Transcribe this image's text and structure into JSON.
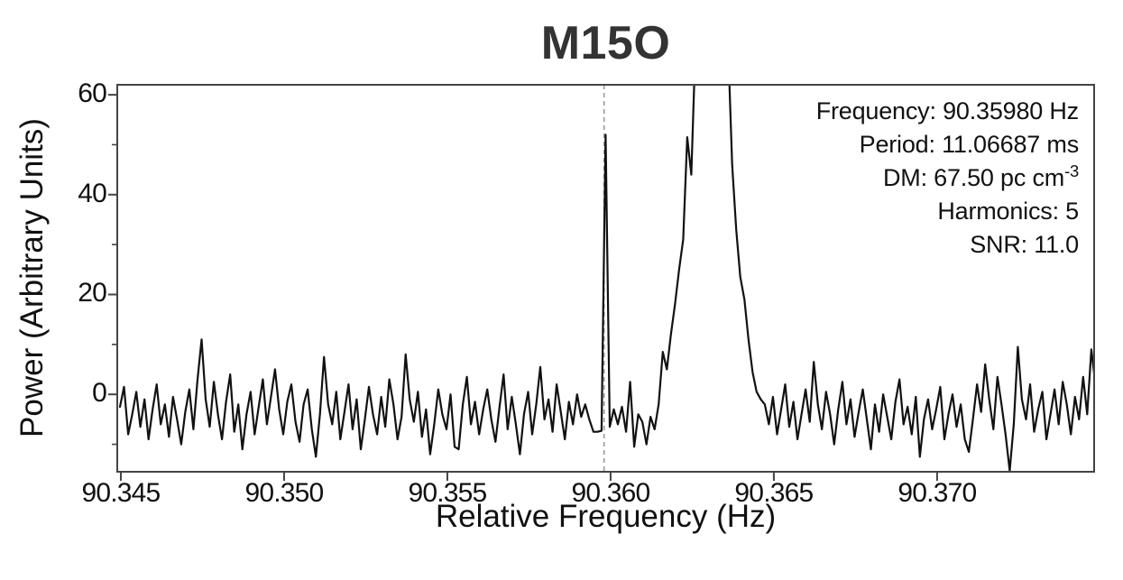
{
  "chart_data": {
    "type": "line",
    "title": "M15O",
    "xlabel": "Relative Frequency (Hz)",
    "ylabel": "Power (Arbitrary Units)",
    "xlim": [
      90.34489,
      90.37481
    ],
    "ylim": [
      -15.5,
      62
    ],
    "grid": false,
    "legend": "none",
    "background": "#ffffff",
    "line_color": "#111111",
    "frame_color": "#444444",
    "marker_line": {
      "x": 90.3598,
      "color": "#999999",
      "style": "dashed"
    },
    "x_ticks": [
      {
        "value": 90.345,
        "label": "90.345"
      },
      {
        "value": 90.35,
        "label": "90.350"
      },
      {
        "value": 90.355,
        "label": "90.355"
      },
      {
        "value": 90.36,
        "label": "90.360"
      },
      {
        "value": 90.365,
        "label": "90.365"
      },
      {
        "value": 90.37,
        "label": "90.370"
      }
    ],
    "y_ticks": [
      {
        "value": 0,
        "label": "0"
      },
      {
        "value": 20,
        "label": "20"
      },
      {
        "value": 40,
        "label": "40"
      },
      {
        "value": 60,
        "label": "60"
      }
    ],
    "y_minor_ticks": [
      -10,
      10,
      30,
      50
    ],
    "annotation": {
      "align": "right",
      "lines": [
        {
          "name": "frequency",
          "text": "Frequency: 90.35980 Hz"
        },
        {
          "name": "period",
          "text": "Period: 11.06687 ms"
        },
        {
          "name": "dm",
          "text": "DM: 67.50 pc cm",
          "sup": "-3"
        },
        {
          "name": "harmonics",
          "text": "Harmonics: 5"
        },
        {
          "name": "snr",
          "text": "SNR: 11.0"
        }
      ]
    },
    "series": [
      {
        "name": "power-spectrum",
        "x_start": 90.344973,
        "x_step": 0.000125,
        "values": [
          -2.5,
          1.5,
          -8,
          -4,
          0.5,
          -6.5,
          -1,
          -9,
          -3,
          2,
          -6,
          -2,
          -8.5,
          -0.5,
          -5,
          -10,
          -3.5,
          1,
          -7,
          3,
          11,
          -1,
          -6.5,
          2.5,
          -4,
          -9,
          -1.5,
          4,
          -7.5,
          -2,
          -11,
          -4,
          0.5,
          -8,
          -2.5,
          3,
          -6,
          -0.5,
          5,
          -3,
          -8,
          -1.5,
          2,
          -5.5,
          -9.5,
          -2,
          1,
          -7,
          -12.5,
          -4,
          7.5,
          -2,
          -6,
          0.5,
          -9,
          -3.5,
          2,
          -7,
          -1,
          -11,
          -5,
          1.5,
          -4,
          -8,
          -0.5,
          -6.5,
          3,
          -2,
          -9,
          -4.5,
          8,
          -1,
          -5.5,
          0.5,
          -8.5,
          -3,
          -12,
          -6,
          1,
          -4,
          -7,
          0,
          -10.5,
          -11,
          -2,
          3.5,
          -6,
          -1.5,
          -8,
          -3,
          1,
          -5,
          -9.5,
          -2.5,
          4,
          -7,
          -0.5,
          -6,
          -12,
          -4,
          0.5,
          -8,
          -2,
          5.5,
          -5,
          -1,
          -7.5,
          2,
          -3.5,
          -9,
          -1.5,
          -6,
          0,
          -4.5,
          -2,
          -5,
          -7.5,
          -7.5,
          -7.3,
          52,
          -6.5,
          -3,
          -6,
          -2.5,
          -7.5,
          2.5,
          -10.5,
          -4,
          -5.5,
          -10,
          -4.5,
          -7,
          -2,
          8.5,
          5,
          12,
          18,
          25,
          31,
          51.5,
          44,
          70,
          75,
          78,
          80,
          80,
          78,
          76,
          72,
          70,
          46,
          33,
          23.5,
          19,
          11,
          4.5,
          0.5,
          -1,
          -2,
          -6,
          -0.5,
          -8,
          -3,
          2,
          -6.5,
          -1.5,
          -9,
          -4,
          1,
          -5.5,
          6.5,
          -2,
          -7,
          0.5,
          -4,
          -10,
          -3,
          2.5,
          -6,
          -1,
          -8.5,
          -3.5,
          1,
          -5,
          -11,
          -2,
          -7.5,
          0,
          -4.5,
          -9,
          -1.5,
          3,
          -6,
          -2.5,
          -8,
          -0.5,
          -12.5,
          -5,
          -1,
          -7,
          -3,
          1.5,
          -9,
          -4,
          0,
          -6.5,
          -2,
          -9,
          -11.5,
          -5,
          2,
          -3.5,
          6,
          -1,
          -7,
          3.5,
          -2,
          -8,
          -15.3,
          -6,
          9.5,
          -1,
          -5,
          2,
          -7.5,
          -3,
          0.5,
          -9,
          -4,
          1,
          -6,
          2.5,
          -2,
          -8,
          -0.5,
          -5,
          3.5,
          -4,
          9,
          2
        ]
      }
    ]
  }
}
